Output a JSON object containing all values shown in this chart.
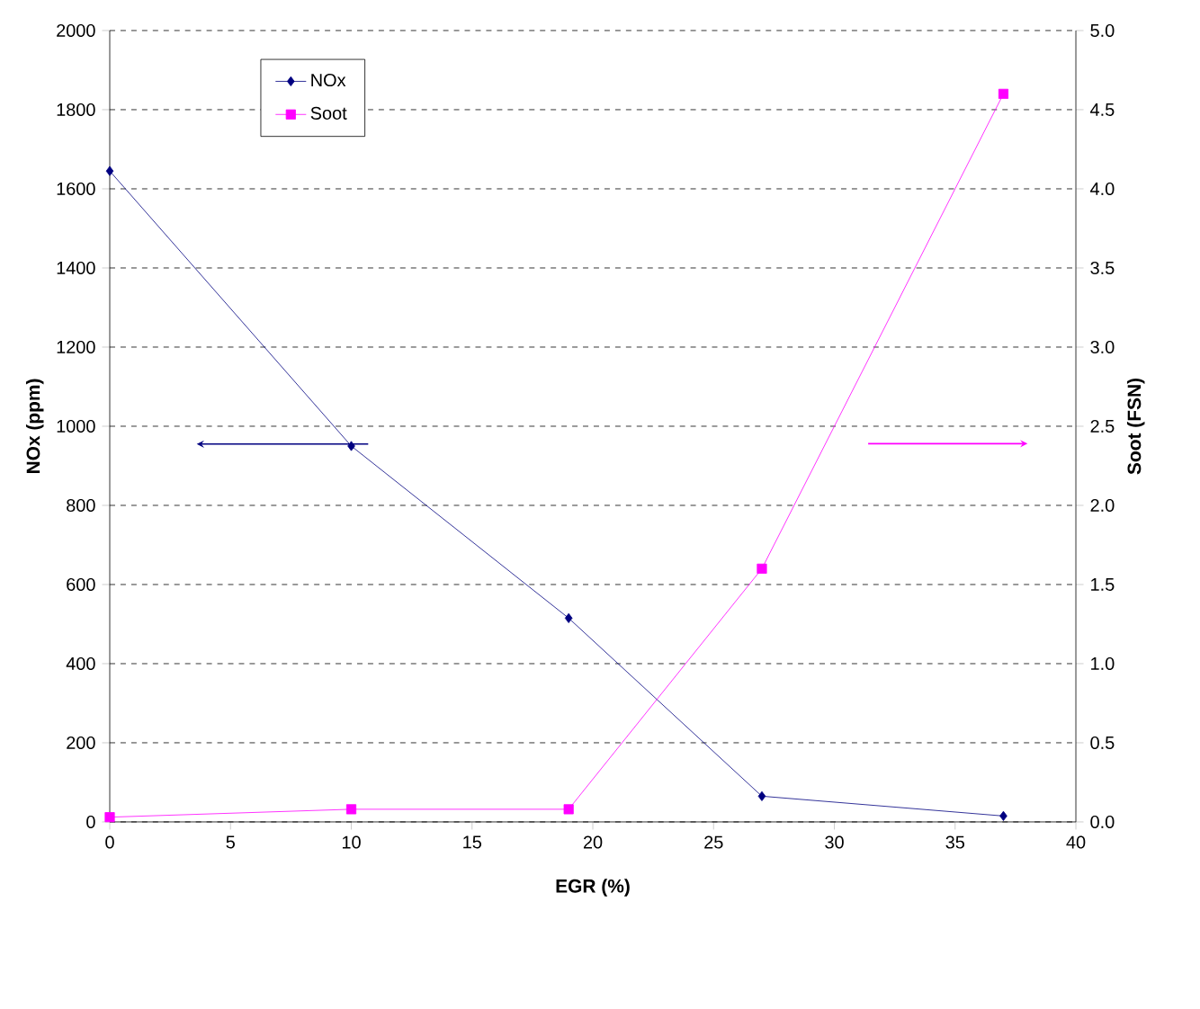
{
  "chart_data": {
    "type": "line",
    "xlabel": "EGR (%)",
    "ylabel": "NOx (ppm)",
    "y2label": "Soot (FSN)",
    "x": [
      0,
      10,
      19,
      27,
      37
    ],
    "series": [
      {
        "name": "NOx",
        "color": "#000080",
        "marker": "diamond",
        "values": [
          1645,
          950,
          515,
          65,
          15
        ]
      },
      {
        "name": "Soot",
        "color": "#ff00ff",
        "marker": "square",
        "axis": "y2",
        "values": [
          0.03,
          0.08,
          0.08,
          1.6,
          4.6
        ]
      }
    ],
    "xlim": [
      0,
      40
    ],
    "ylim": [
      0,
      2000
    ],
    "y2lim": [
      0,
      5
    ],
    "xticks": [
      0,
      5,
      10,
      15,
      20,
      25,
      30,
      35,
      40
    ],
    "yticks": [
      0,
      200,
      400,
      600,
      800,
      1000,
      1200,
      1400,
      1600,
      1800,
      2000
    ],
    "y2ticks": [
      {
        "value": 0,
        "label": "0.0"
      },
      0.5,
      {
        "value": 1,
        "label": "1.0"
      },
      1.5,
      {
        "value": 2,
        "label": "2.0"
      },
      2.5,
      {
        "value": 3,
        "label": "3.0"
      },
      3.5,
      {
        "value": 4,
        "label": "4.0"
      },
      4.5,
      {
        "value": 5,
        "label": "5.0"
      }
    ],
    "grid": "y",
    "legend": "top left"
  }
}
